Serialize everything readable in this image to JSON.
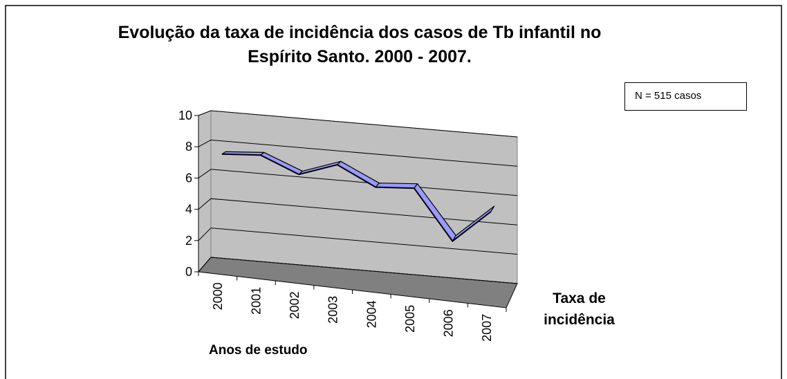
{
  "chart_data": {
    "type": "line",
    "title": "Evolução da taxa de incidência dos casos de Tb infantil no Espírito Santo. 2000 - 2007.",
    "annotation": "N = 515 casos",
    "x_label": "Anos de estudo",
    "categories": [
      "2000",
      "2001",
      "2002",
      "2003",
      "2004",
      "2005",
      "2006",
      "2007"
    ],
    "series": [
      {
        "name": "Taxa de incidência",
        "color": "#9999ff",
        "values": [
          7.5,
          7.7,
          6.7,
          7.6,
          6.4,
          6.6,
          3.4,
          5.6
        ]
      }
    ],
    "ylim": [
      0,
      10
    ],
    "yticks": [
      0,
      2,
      4,
      6,
      8,
      10
    ],
    "grid": true
  }
}
